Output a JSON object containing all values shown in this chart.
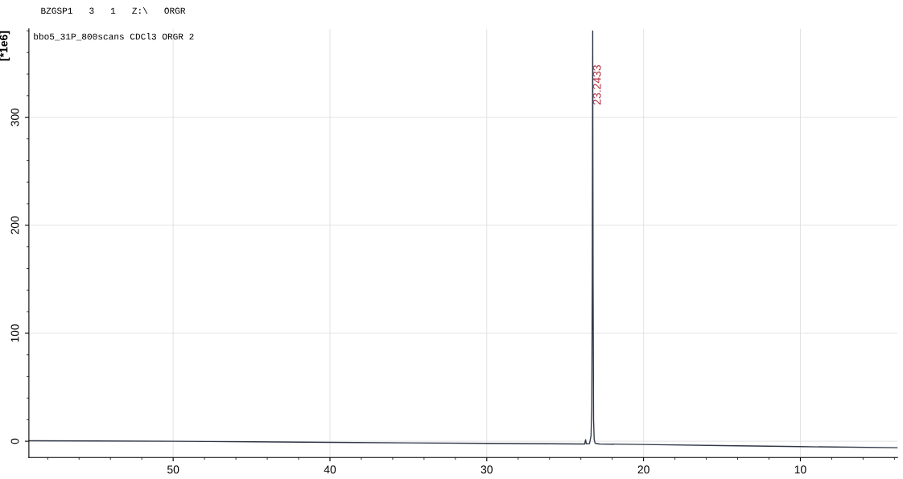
{
  "chart_data": {
    "type": "line",
    "title": "BZGSP1   3   1   Z:\\   ORGR",
    "subtitle": "bbo5_31P_800scans CDCl3 ORGR 2",
    "ylabel": "[*1e6]",
    "x": [
      59.2,
      55,
      50,
      45,
      40,
      35,
      30,
      26,
      24,
      23.75,
      23.7,
      23.65,
      23.45,
      23.35,
      23.3,
      23.27,
      23.2433,
      23.22,
      23.19,
      23.15,
      23.1,
      23.0,
      22.8,
      20,
      15,
      10,
      3.8
    ],
    "series": [
      {
        "color": "#303848",
        "values": [
          0.5,
          0.3,
          0,
          -0.5,
          -1,
          -1.5,
          -2,
          -2.3,
          -2.5,
          -2.5,
          1.5,
          -2.3,
          -2.2,
          5,
          30,
          150,
          380,
          150,
          20,
          2,
          -1.5,
          -2.2,
          -2.5,
          -3,
          -4,
          -5,
          -6
        ]
      }
    ],
    "xlim": [
      59.2,
      3.8
    ],
    "xticks": [
      50,
      40,
      30,
      20,
      10
    ],
    "ylim": [
      -15,
      382
    ],
    "yticks": [
      0,
      100,
      200,
      300
    ],
    "grid": true,
    "line_style": "solid",
    "marker": "none",
    "annotations": [
      {
        "text": "23.2433",
        "x": 23.2433,
        "y": 330
      }
    ]
  }
}
